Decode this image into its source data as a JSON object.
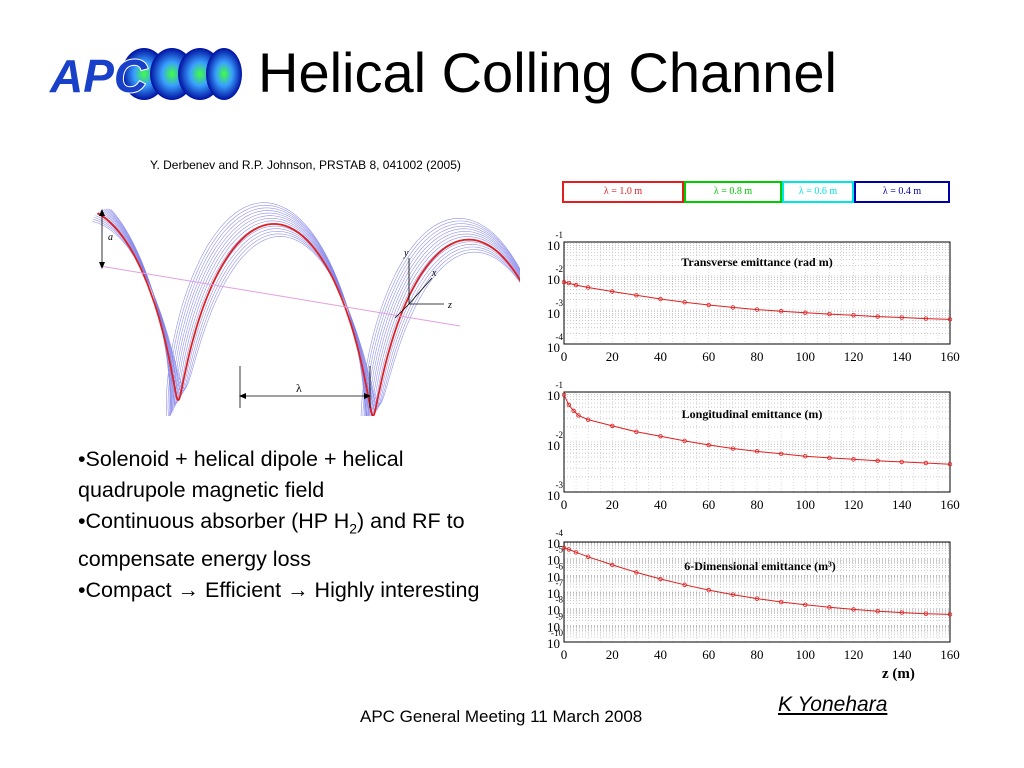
{
  "slide": {
    "title": "Helical Colling Channel",
    "citation": "Y. Derbenev and R.P. Johnson, PRSTAB 8, 041002 (2005)",
    "logo_text": "APC",
    "footer": "APC General Meeting 11 March 2008",
    "author": "K Yonehara",
    "colors": {
      "red": "#e02020",
      "blue": "#2040d0",
      "green": "#00cc00",
      "cyan": "#00ffff",
      "navy": "#0000aa"
    }
  },
  "diagram": {
    "label_a": "a",
    "label_lambda": "λ",
    "axis_y": "y",
    "axis_x": "x",
    "axis_z": "z"
  },
  "bullets": [
    {
      "prefix": "•Solenoid + helical dipole + helical quadrupole magnetic field",
      "sub": "",
      "suffix": ""
    },
    {
      "prefix": "•Continuous absorber (HP H",
      "sub": "2",
      "suffix": ") and RF to compensate energy loss"
    },
    {
      "prefix": "•Compact → Efficient → Highly interesting",
      "sub": "",
      "suffix": ""
    }
  ],
  "legend": [
    {
      "label": "λ = 1.0 m",
      "color": "#e02020"
    },
    {
      "label": "λ = 0.8 m",
      "color": "#00cc00"
    },
    {
      "label": "λ = 0.6 m",
      "color": "#00e5e5"
    },
    {
      "label": "λ = 0.4 m",
      "color": "#0000aa"
    }
  ],
  "chart_data": [
    {
      "type": "scatter",
      "title": "Transverse emittance (rad m)",
      "yscale": "log",
      "xlim": [
        0,
        160
      ],
      "ylim_exp": [
        -4,
        -1
      ],
      "xticks": [
        0,
        20,
        40,
        60,
        80,
        100,
        120,
        140,
        160
      ],
      "yticks_exp": [
        -1,
        -2,
        -3,
        -4
      ],
      "series": [
        {
          "color": "#e02020",
          "x": [
            0,
            2,
            5,
            10,
            20,
            30,
            40,
            50,
            60,
            70,
            80,
            90,
            100,
            110,
            120,
            130,
            140,
            150,
            160
          ],
          "y": [
            0.0066,
            0.0062,
            0.0054,
            0.0046,
            0.0035,
            0.0027,
            0.0021,
            0.0017,
            0.0014,
            0.00119,
            0.00103,
            0.00092,
            0.00083,
            0.00076,
            0.0007,
            0.00064,
            0.0006,
            0.00056,
            0.00053
          ]
        }
      ]
    },
    {
      "type": "scatter",
      "title": "Longitudinal emittance (m)",
      "yscale": "log",
      "xlim": [
        0,
        160
      ],
      "ylim_exp": [
        -3,
        -1
      ],
      "xticks": [
        0,
        20,
        40,
        60,
        80,
        100,
        120,
        140,
        160
      ],
      "yticks_exp": [
        -1,
        -2,
        -3
      ],
      "series": [
        {
          "color": "#e02020",
          "x": [
            0,
            2,
            4,
            6,
            10,
            20,
            30,
            40,
            50,
            60,
            70,
            80,
            90,
            100,
            110,
            120,
            130,
            140,
            150,
            160
          ],
          "y": [
            0.088,
            0.055,
            0.042,
            0.034,
            0.028,
            0.021,
            0.016,
            0.013,
            0.0105,
            0.0087,
            0.0074,
            0.0065,
            0.0058,
            0.0052,
            0.0048,
            0.0045,
            0.0042,
            0.004,
            0.0038,
            0.0036
          ]
        }
      ]
    },
    {
      "type": "scatter",
      "title": "6-Dimensional emittance (m³)",
      "xlabel": "z (m)",
      "yscale": "log",
      "xlim": [
        0,
        160
      ],
      "ylim_exp": [
        -10,
        -4
      ],
      "xticks": [
        0,
        20,
        40,
        60,
        80,
        100,
        120,
        140,
        160
      ],
      "yticks_exp": [
        -4,
        -5,
        -6,
        -7,
        -8,
        -9,
        -10
      ],
      "series": [
        {
          "color": "#e02020",
          "x": [
            0,
            2,
            5,
            10,
            20,
            30,
            40,
            50,
            60,
            70,
            80,
            90,
            100,
            110,
            120,
            130,
            140,
            150,
            160
          ],
          "y": [
            4.5e-05,
            3.6e-05,
            2.4e-05,
            1.3e-05,
            4.2e-06,
            1.5e-06,
            6e-07,
            2.7e-07,
            1.3e-07,
            7e-08,
            4e-08,
            2.5e-08,
            1.7e-08,
            1.2e-08,
            9e-09,
            7e-09,
            5.8e-09,
            5e-09,
            4.5e-09
          ]
        }
      ]
    }
  ]
}
